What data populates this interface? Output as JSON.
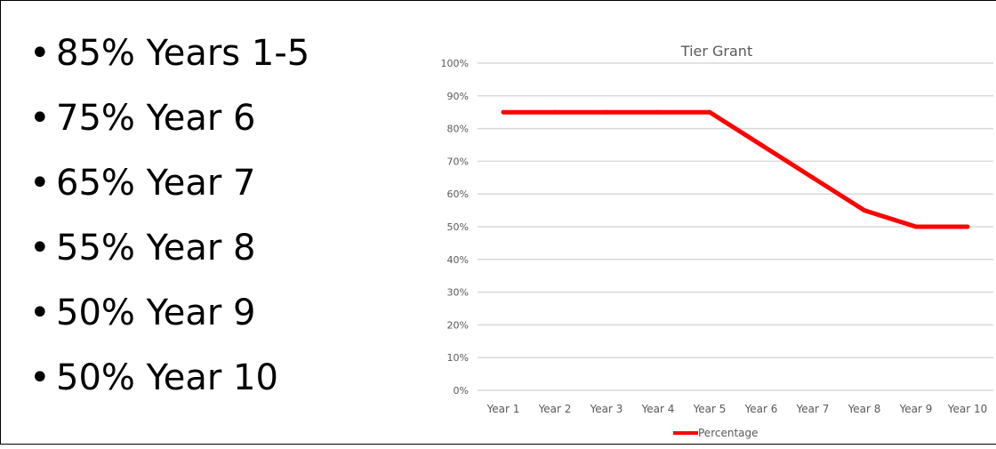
{
  "bullets": [
    "85% Years 1-5",
    "75% Year 6",
    "65% Year 7",
    "55% Year 8",
    "50% Year 9",
    "50% Year 10"
  ],
  "bullet_glyph": "•",
  "chart_data": {
    "type": "line",
    "title": "Tier Grant",
    "xlabel": "",
    "ylabel": "",
    "categories": [
      "Year 1",
      "Year 2",
      "Year 3",
      "Year 4",
      "Year 5",
      "Year 6",
      "Year 7",
      "Year 8",
      "Year 9",
      "Year 10"
    ],
    "series": [
      {
        "name": "Percentage",
        "values": [
          85,
          85,
          85,
          85,
          85,
          75,
          65,
          55,
          50,
          50
        ],
        "color": "#ff0000"
      }
    ],
    "ylim": [
      0,
      100
    ],
    "yticks": [
      "0%",
      "10%",
      "20%",
      "30%",
      "40%",
      "50%",
      "60%",
      "70%",
      "80%",
      "90%",
      "100%"
    ],
    "grid": true,
    "legend": "bottom",
    "colors": {
      "grid": "#d9d9d9",
      "text": "#595959",
      "title": "#595959"
    }
  }
}
